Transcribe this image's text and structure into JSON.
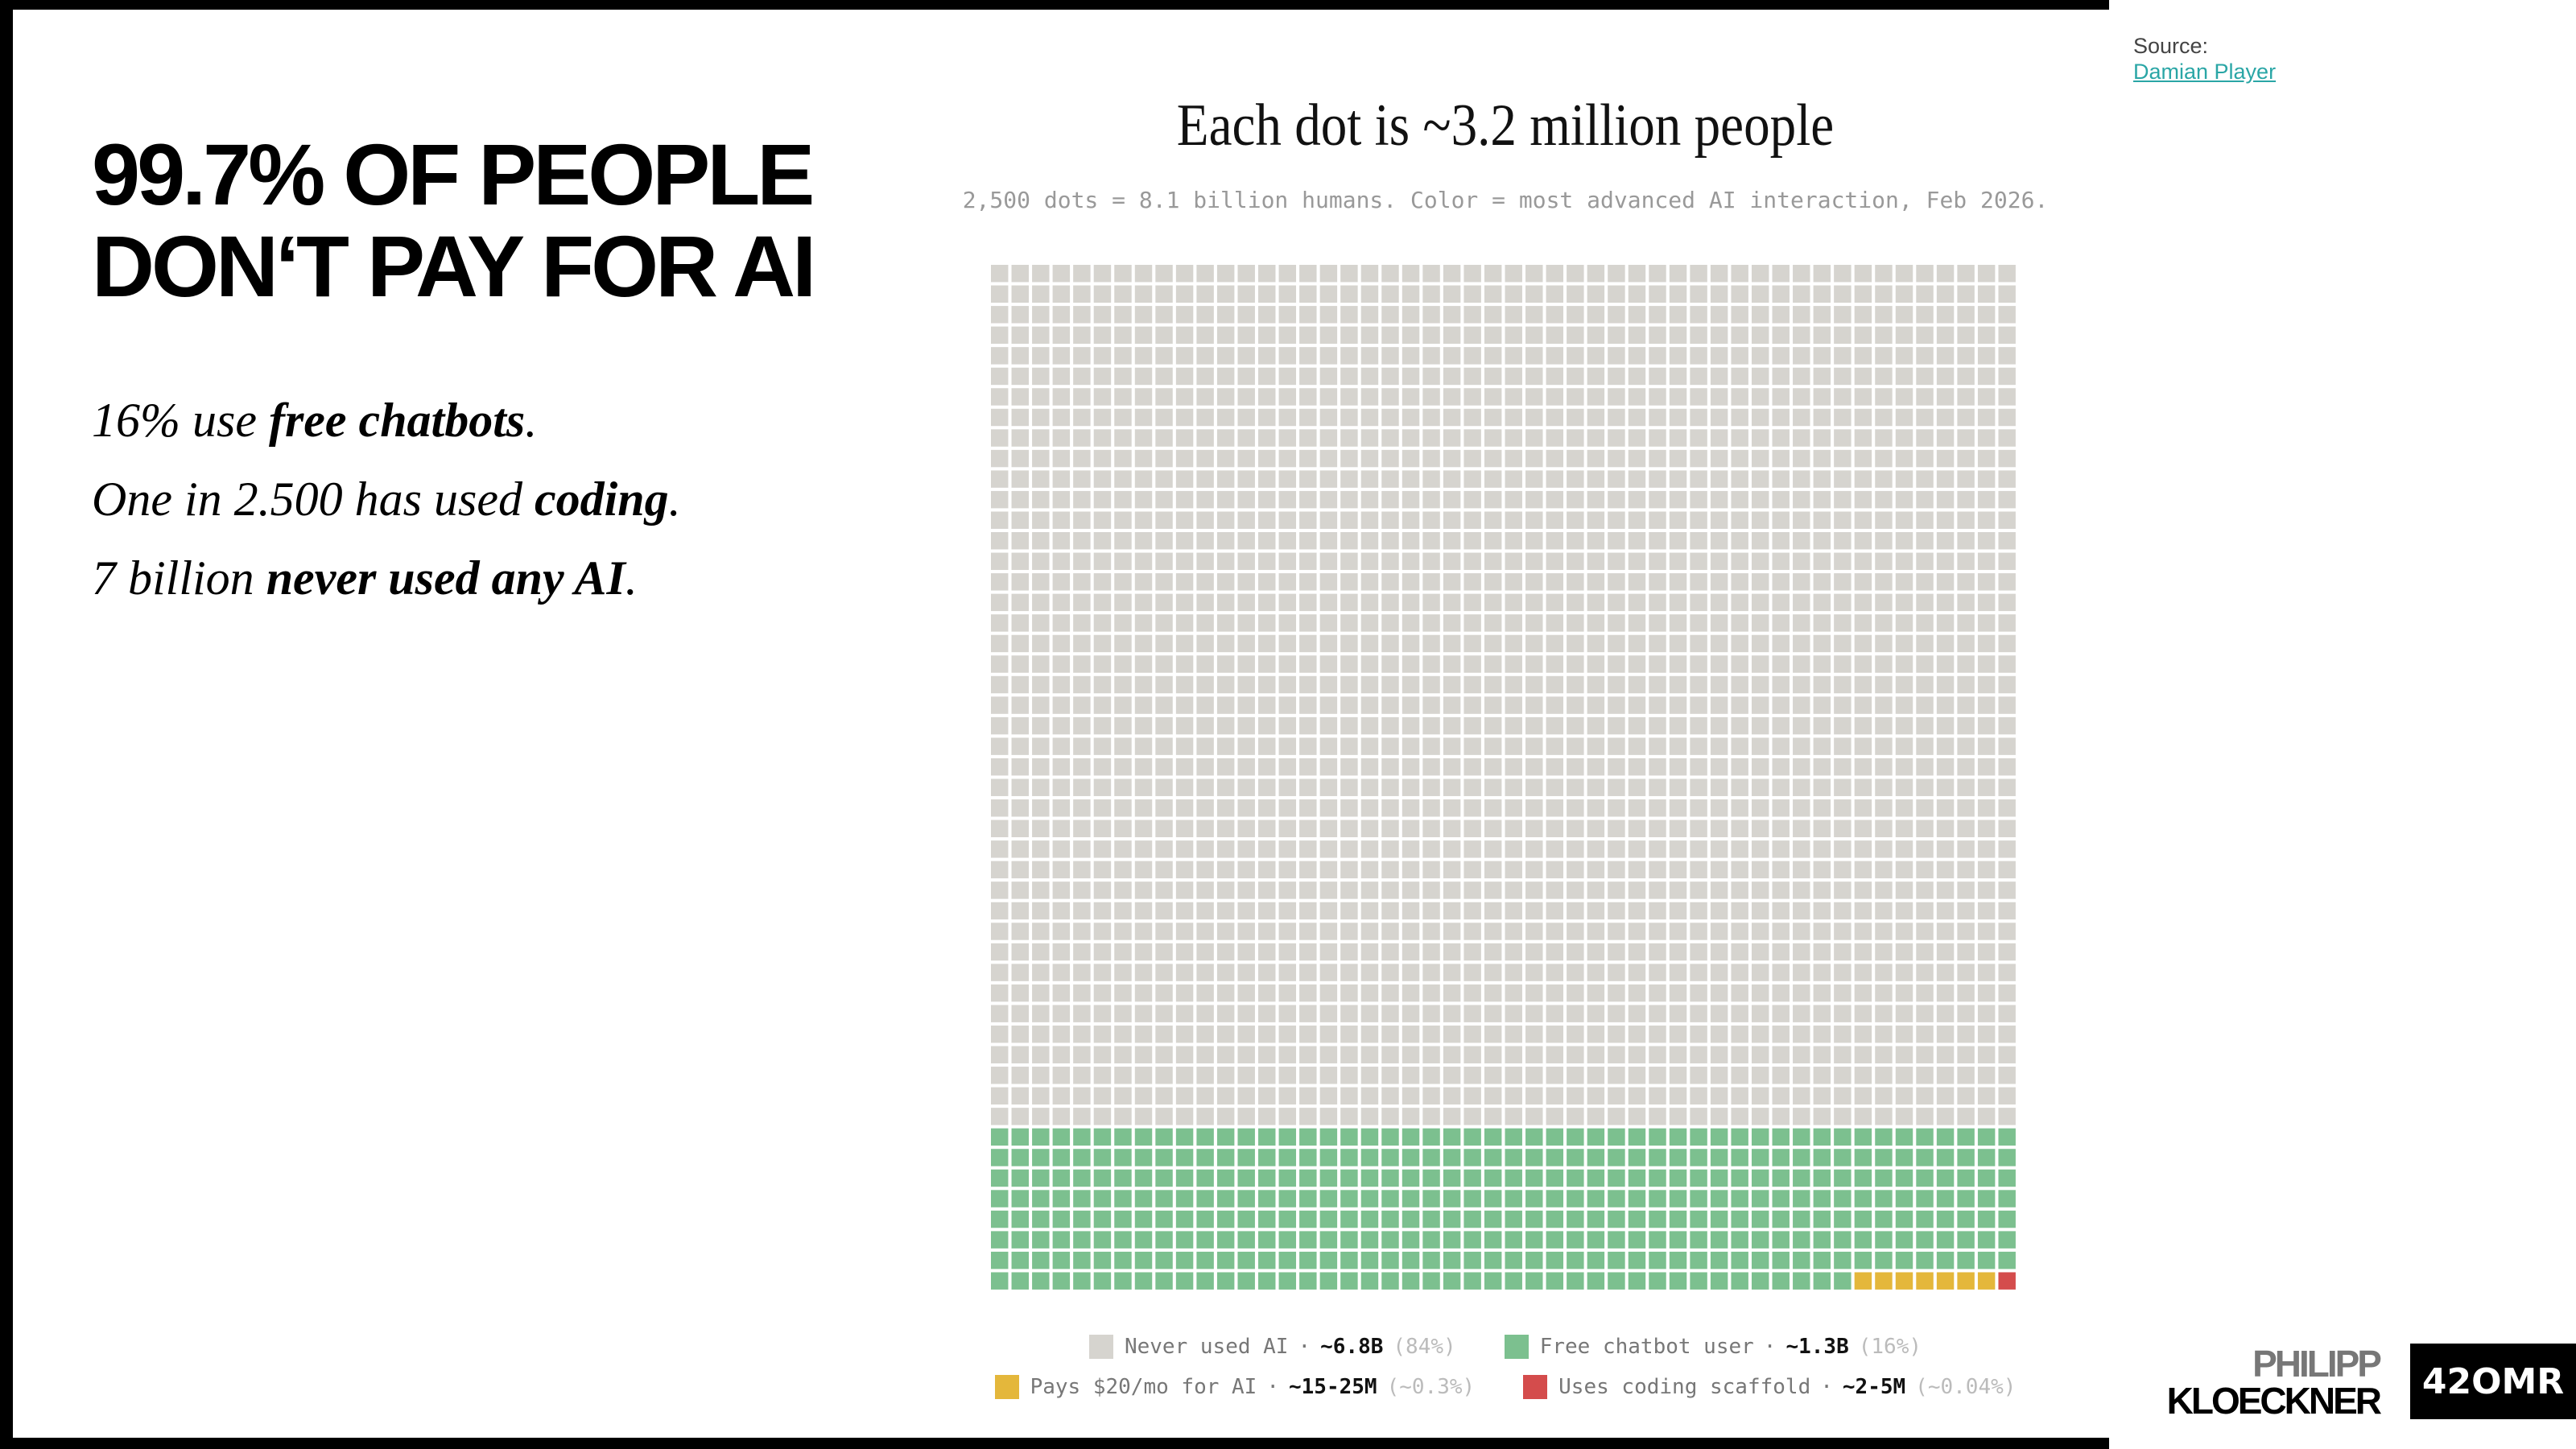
{
  "headline": [
    "99.7% OF PEOPLE",
    "DON‘T PAY FOR AI"
  ],
  "statements": [
    [
      "16% use ",
      "free chatbots",
      "."
    ],
    [
      "One in 2.500 has used ",
      "coding",
      "."
    ],
    [
      "7 billion ",
      "never used any AI",
      "."
    ]
  ],
  "source": {
    "label": "Source:",
    "link": "Damian Player"
  },
  "branding": {
    "name": [
      "PHILIPP",
      "KLOECKNER"
    ],
    "logo": "42OMR"
  },
  "chart_data": {
    "type": "waffle",
    "title": "Each dot is ~3.2 million people",
    "subtitle": "2,500 dots = 8.1 billion humans. Color = most advanced AI interaction, Feb 2026.",
    "separator": "·",
    "series": [
      {
        "name": "Never used AI",
        "color": "#d6d4cf",
        "values": [
          2100
        ],
        "value_label": "~6.8B",
        "share_label": "(84%)"
      },
      {
        "name": "Free chatbot user",
        "color": "#7cc08f",
        "values": [
          392
        ],
        "value_label": "~1.3B",
        "share_label": "(16%)"
      },
      {
        "name": "Pays $20/mo for AI",
        "color": "#e4b73b",
        "values": [
          7
        ],
        "value_label": "~15-25M",
        "share_label": "(~0.3%)"
      },
      {
        "name": "Uses coding scaffold",
        "color": "#d44c4c",
        "values": [
          1
        ],
        "value_label": "~2-5M",
        "share_label": "(~0.04%)"
      }
    ]
  }
}
